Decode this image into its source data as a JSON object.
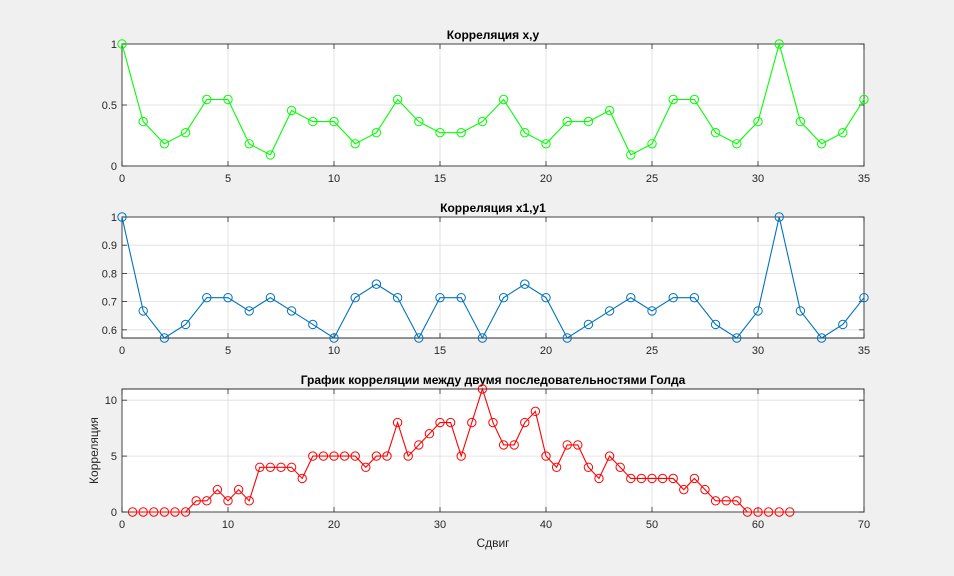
{
  "chart_data": [
    {
      "type": "line",
      "title": "Корреляция x,y",
      "xlabel": "",
      "ylabel": "",
      "xlim": [
        0,
        35
      ],
      "ylim": [
        0,
        1
      ],
      "xticks": [
        0,
        5,
        10,
        15,
        20,
        25,
        30,
        35
      ],
      "xtick_labels": [
        "0",
        "5",
        "10",
        "15",
        "20",
        "25",
        "30",
        "35"
      ],
      "yticks": [
        0,
        0.5,
        1
      ],
      "ytick_labels": [
        "0",
        "0.5",
        "1"
      ],
      "grid": true,
      "marker": "circle",
      "color": "#00ff00",
      "series": [
        {
          "x": [
            0,
            1,
            2,
            3,
            4,
            5,
            6,
            7,
            8,
            9,
            10,
            11,
            12,
            13,
            14,
            15,
            16,
            17,
            18,
            19,
            20,
            21,
            22,
            23,
            24,
            25,
            26,
            27,
            28,
            29,
            30,
            31,
            32,
            33,
            34,
            35
          ],
          "values": [
            1,
            0.364,
            0.182,
            0.273,
            0.545,
            0.545,
            0.182,
            0.091,
            0.455,
            0.364,
            0.364,
            0.182,
            0.273,
            0.545,
            0.364,
            0.273,
            0.273,
            0.364,
            0.545,
            0.273,
            0.182,
            0.364,
            0.364,
            0.455,
            0.091,
            0.182,
            0.545,
            0.545,
            0.273,
            0.182,
            0.364,
            1,
            0.364,
            0.182,
            0.273,
            0.545
          ]
        }
      ]
    },
    {
      "type": "line",
      "title": "Корреляция x1,y1",
      "xlabel": "",
      "ylabel": "",
      "xlim": [
        0,
        35
      ],
      "ylim": [
        0.571,
        1
      ],
      "xticks": [
        0,
        5,
        10,
        15,
        20,
        25,
        30,
        35
      ],
      "xtick_labels": [
        "0",
        "5",
        "10",
        "15",
        "20",
        "25",
        "30",
        "35"
      ],
      "yticks": [
        0.6,
        0.7,
        0.8,
        0.9,
        1
      ],
      "ytick_labels": [
        "0.6",
        "0.7",
        "0.8",
        "0.9",
        "1"
      ],
      "grid": true,
      "marker": "circle",
      "color": "#0072bd",
      "series": [
        {
          "x": [
            0,
            1,
            2,
            3,
            4,
            5,
            6,
            7,
            8,
            9,
            10,
            11,
            12,
            13,
            14,
            15,
            16,
            17,
            18,
            19,
            20,
            21,
            22,
            23,
            24,
            25,
            26,
            27,
            28,
            29,
            30,
            31,
            32,
            33,
            34,
            35
          ],
          "values": [
            1,
            0.667,
            0.571,
            0.619,
            0.714,
            0.714,
            0.667,
            0.714,
            0.667,
            0.619,
            0.571,
            0.714,
            0.762,
            0.714,
            0.571,
            0.714,
            0.714,
            0.571,
            0.714,
            0.762,
            0.714,
            0.571,
            0.619,
            0.667,
            0.714,
            0.667,
            0.714,
            0.714,
            0.619,
            0.571,
            0.667,
            1,
            0.667,
            0.571,
            0.619,
            0.714
          ]
        }
      ]
    },
    {
      "type": "line",
      "title": "График корреляции между двумя последовательностями Голда",
      "xlabel": "Сдвиг",
      "ylabel": "Корреляция",
      "xlim": [
        0,
        70
      ],
      "ylim": [
        0,
        11
      ],
      "xticks": [
        0,
        10,
        20,
        30,
        40,
        50,
        60,
        70
      ],
      "xtick_labels": [
        "0",
        "10",
        "20",
        "30",
        "40",
        "50",
        "60",
        "70"
      ],
      "yticks": [
        0,
        5,
        10
      ],
      "ytick_labels": [
        "0",
        "5",
        "10"
      ],
      "grid": true,
      "marker": "circle",
      "color": "#ff0000",
      "series": [
        {
          "x": [
            1,
            2,
            3,
            4,
            5,
            6,
            7,
            8,
            9,
            10,
            11,
            12,
            13,
            14,
            15,
            16,
            17,
            18,
            19,
            20,
            21,
            22,
            23,
            24,
            25,
            26,
            27,
            28,
            29,
            30,
            31,
            32,
            33,
            34,
            35,
            36,
            37,
            38,
            39,
            40,
            41,
            42,
            43,
            44,
            45,
            46,
            47,
            48,
            49,
            50,
            51,
            52,
            53,
            54,
            55,
            56,
            57,
            58,
            59,
            60,
            61,
            62,
            63
          ],
          "values": [
            0,
            0,
            0,
            0,
            0,
            0,
            1,
            1,
            2,
            1,
            2,
            1,
            4,
            4,
            4,
            4,
            3,
            5,
            5,
            5,
            5,
            5,
            4,
            5,
            5,
            8,
            5,
            6,
            7,
            8,
            8,
            5,
            8,
            11,
            8,
            6,
            6,
            8,
            9,
            5,
            4,
            6,
            6,
            4,
            3,
            5,
            4,
            3,
            3,
            3,
            3,
            3,
            2,
            3,
            2,
            1,
            1,
            1,
            0,
            0,
            0,
            0,
            0
          ]
        }
      ]
    }
  ]
}
